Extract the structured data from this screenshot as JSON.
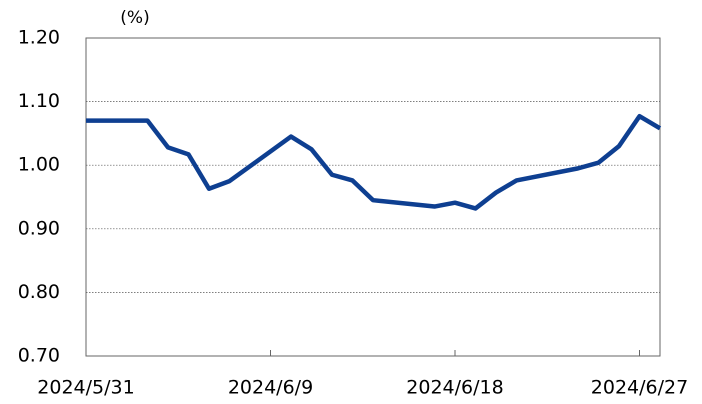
{
  "chart_data": {
    "type": "line",
    "y_label": "(%)",
    "x": [
      "2024/5/31",
      "2024/6/3",
      "2024/6/4",
      "2024/6/5",
      "2024/6/6",
      "2024/6/7",
      "2024/6/10",
      "2024/6/11",
      "2024/6/12",
      "2024/6/13",
      "2024/6/14",
      "2024/6/17",
      "2024/6/18",
      "2024/6/19",
      "2024/6/20",
      "2024/6/21",
      "2024/6/24",
      "2024/6/25",
      "2024/6/26",
      "2024/6/27",
      "2024/6/28"
    ],
    "series": [
      {
        "color": "#0e3f91",
        "values": [
          1.07,
          1.07,
          1.028,
          1.017,
          0.963,
          0.975,
          1.045,
          1.025,
          0.985,
          0.976,
          0.945,
          0.935,
          0.941,
          0.932,
          0.957,
          0.976,
          0.995,
          1.004,
          1.03,
          1.077,
          1.058
        ]
      }
    ],
    "xlim": [
      "2024/5/31",
      "2024/6/28"
    ],
    "xticks": [
      "2024/5/31",
      "2024/6/9",
      "2024/6/18",
      "2024/6/27"
    ],
    "ylim": [
      0.7,
      1.2
    ],
    "yticks": [
      {
        "value": 0.7,
        "label": "0.70"
      },
      {
        "value": 0.8,
        "label": "0.80"
      },
      {
        "value": 0.9,
        "label": "0.90"
      },
      {
        "value": 1.0,
        "label": "1.00"
      },
      {
        "value": 1.1,
        "label": "1.10"
      },
      {
        "value": 1.2,
        "label": "1.20"
      }
    ],
    "grid": true
  }
}
